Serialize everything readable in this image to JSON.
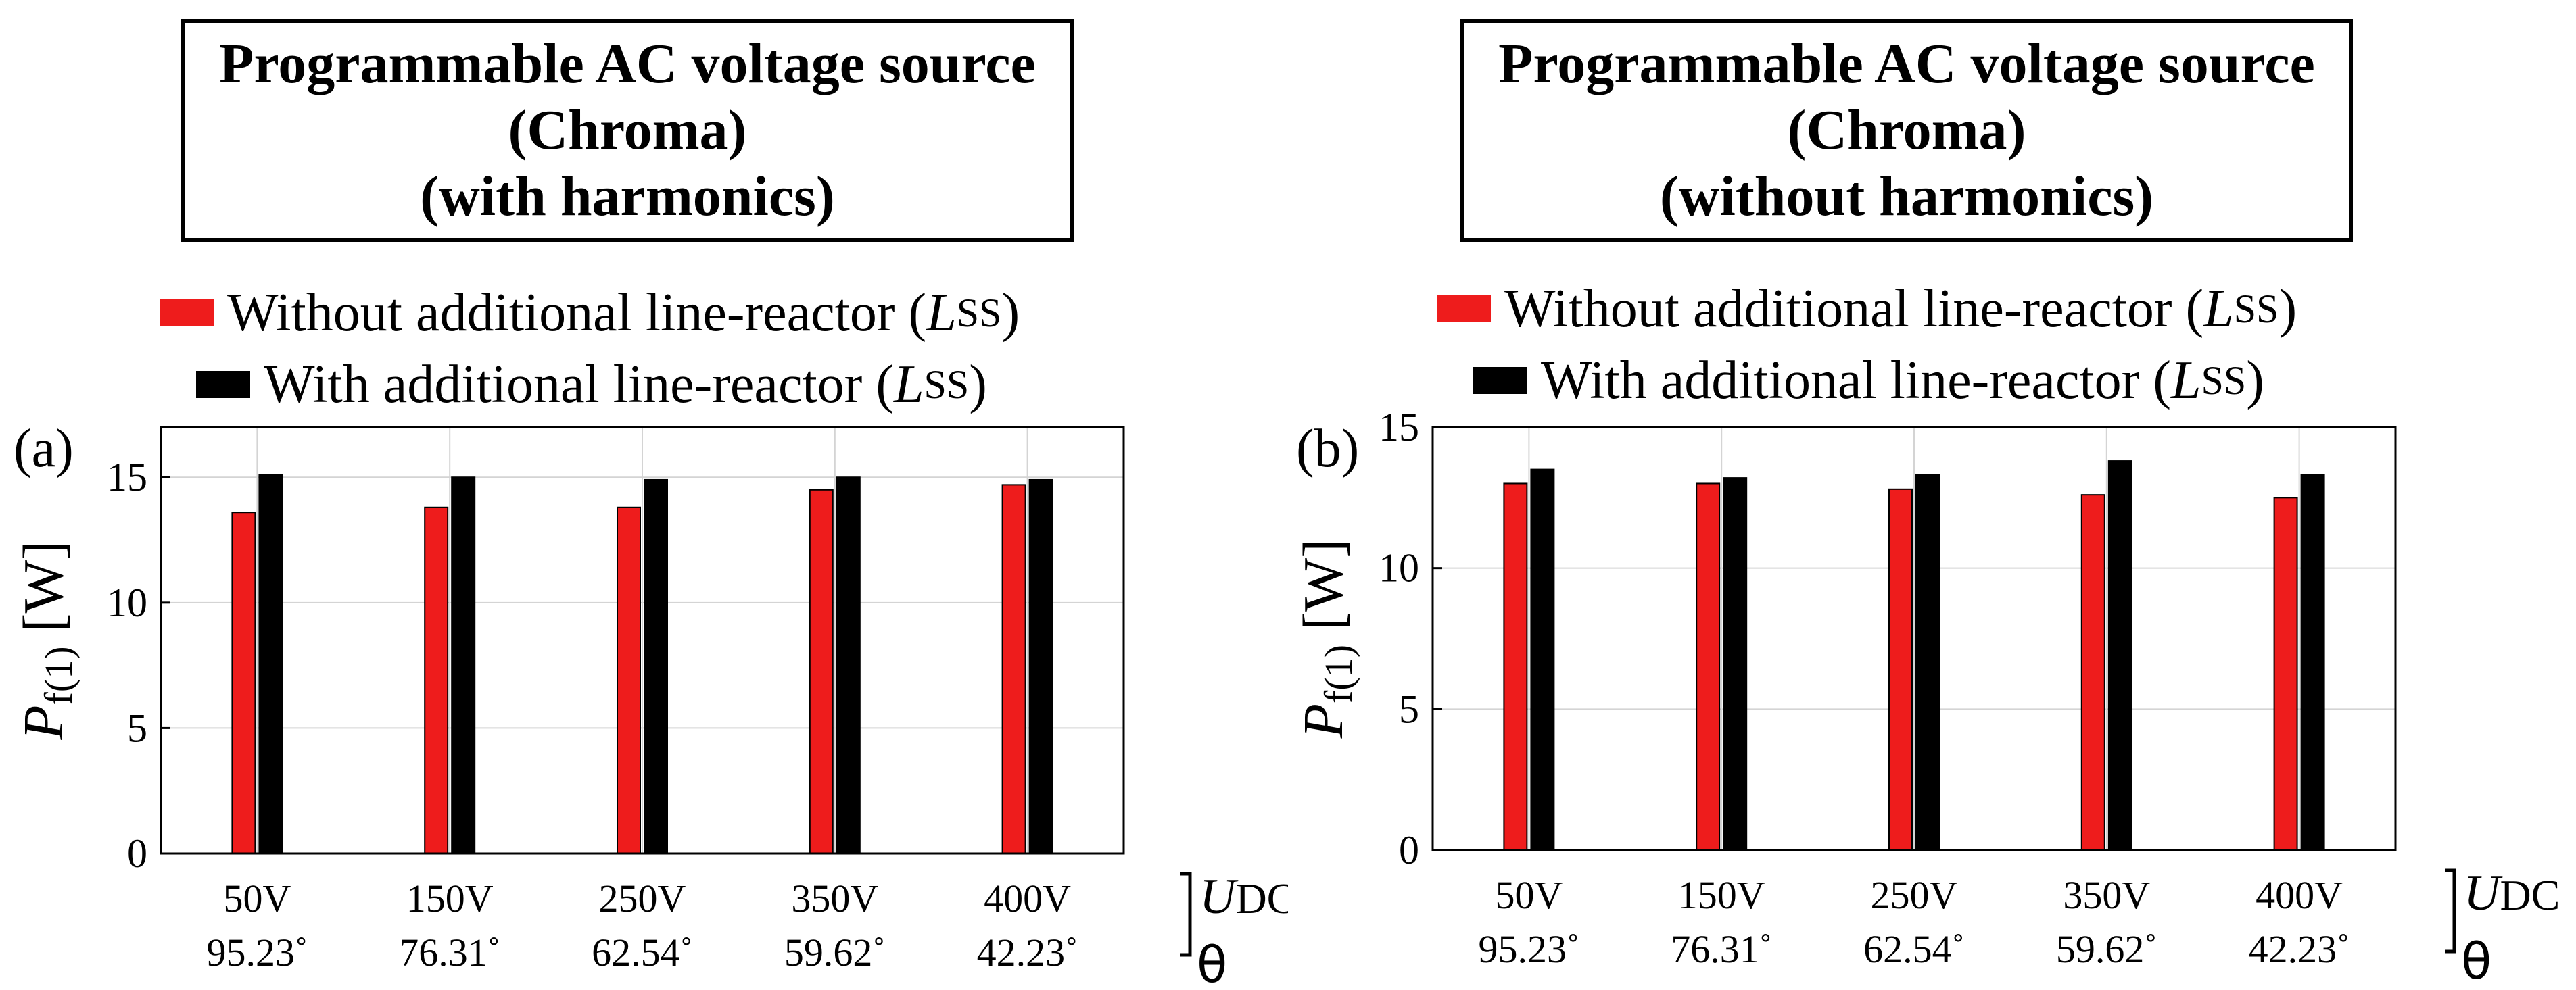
{
  "chart_data": [
    {
      "type": "bar",
      "panel_label": "(a)",
      "title_lines": [
        "Programmable AC voltage source",
        "(Chroma)",
        "(with harmonics)"
      ],
      "legend": {
        "position": "top",
        "entries": [
          {
            "text": "Without additional line-reactor (",
            "symbol": "L",
            "subscript": "SS",
            "close": ")",
            "color": "#ee1c1c"
          },
          {
            "text": "With additional line-reactor (",
            "symbol": "L",
            "subscript": "SS",
            "close": ")",
            "color": "#000000"
          }
        ]
      },
      "ylabel": {
        "symbol": "P",
        "subscript": "f(1)",
        "unit": "[W]"
      },
      "ylim": [
        0,
        17
      ],
      "yticks": [
        "0",
        "5",
        "10",
        "15"
      ],
      "grid": true,
      "categories": [
        {
          "voltage": "50V",
          "angle": "95.23˚"
        },
        {
          "voltage": "150V",
          "angle": "76.31˚"
        },
        {
          "voltage": "250V",
          "angle": "62.54˚"
        },
        {
          "voltage": "350V",
          "angle": "59.62˚"
        },
        {
          "voltage": "400V",
          "angle": "42.23˚"
        }
      ],
      "series": [
        {
          "name": "Without additional line-reactor (LSS)",
          "color": "#ee1c1c",
          "values": [
            13.6,
            13.8,
            13.8,
            14.5,
            14.7
          ]
        },
        {
          "name": "With additional line-reactor (LSS)",
          "color": "#000000",
          "values": [
            15.1,
            15.0,
            14.9,
            15.0,
            14.9
          ]
        }
      ],
      "axis_key": {
        "u_symbol": "U",
        "u_subscript": "DC",
        "theta": "θ"
      }
    },
    {
      "type": "bar",
      "panel_label": "(b)",
      "title_lines": [
        "Programmable AC voltage source",
        "(Chroma)",
        "(without harmonics)"
      ],
      "legend": {
        "position": "top",
        "entries": [
          {
            "text": "Without additional line-reactor (",
            "symbol": "L",
            "subscript": "SS",
            "close": ")",
            "color": "#ee1c1c"
          },
          {
            "text": "With additional line-reactor (",
            "symbol": "L",
            "subscript": "SS",
            "close": ")",
            "color": "#000000"
          }
        ]
      },
      "ylabel": {
        "symbol": "P",
        "subscript": "f(1)",
        "unit": "[W]"
      },
      "ylim": [
        0,
        15
      ],
      "yticks": [
        "0",
        "5",
        "10",
        "15"
      ],
      "grid": true,
      "categories": [
        {
          "voltage": "50V",
          "angle": "95.23˚"
        },
        {
          "voltage": "150V",
          "angle": "76.31˚"
        },
        {
          "voltage": "250V",
          "angle": "62.54˚"
        },
        {
          "voltage": "350V",
          "angle": "59.62˚"
        },
        {
          "voltage": "400V",
          "angle": "42.23˚"
        }
      ],
      "series": [
        {
          "name": "Without additional line-reactor (LSS)",
          "color": "#ee1c1c",
          "values": [
            13.0,
            13.0,
            12.8,
            12.6,
            12.5
          ]
        },
        {
          "name": "With additional line-reactor (LSS)",
          "color": "#000000",
          "values": [
            13.5,
            13.2,
            13.3,
            13.8,
            13.3
          ]
        }
      ],
      "axis_key": {
        "u_symbol": "U",
        "u_subscript": "DC",
        "theta": "θ"
      }
    }
  ]
}
